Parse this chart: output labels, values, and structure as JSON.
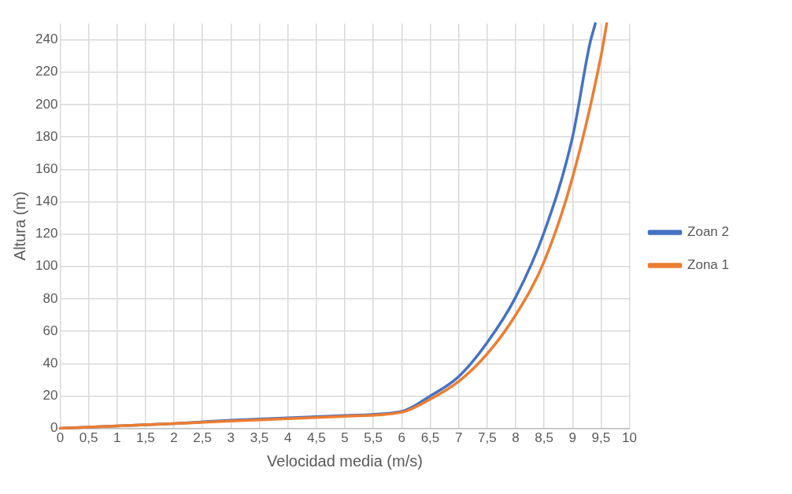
{
  "chart_data": {
    "type": "line",
    "xlabel": "Velocidad media (m/s)",
    "ylabel": "Altura (m)",
    "xlim": [
      0,
      10
    ],
    "xticks": [
      0,
      {
        "value": 0.5,
        "label": "0,5"
      },
      1,
      {
        "value": 1.5,
        "label": "1,5"
      },
      2,
      {
        "value": 2.5,
        "label": "2,5"
      },
      3,
      {
        "value": 3.5,
        "label": "3,5"
      },
      4,
      {
        "value": 4.5,
        "label": "4,5"
      },
      5,
      {
        "value": 5.5,
        "label": "5,5"
      },
      6,
      {
        "value": 6.5,
        "label": "6,5"
      },
      7,
      {
        "value": 7.5,
        "label": "7,5"
      },
      8,
      {
        "value": 8.5,
        "label": "8,5"
      },
      9,
      {
        "value": 9.5,
        "label": "9,5"
      },
      10
    ],
    "ylim": [
      0,
      250
    ],
    "yticks": [
      0,
      20,
      40,
      60,
      80,
      100,
      120,
      140,
      160,
      180,
      200,
      220,
      240
    ],
    "grid": true,
    "legend": "right",
    "marker": "none",
    "line_style": "solid",
    "series": [
      {
        "name": "Zoan 2",
        "color": "#4472c4",
        "x": [
          0,
          1,
          2,
          3,
          4,
          5,
          6,
          6.5,
          7,
          7.5,
          8,
          8.5,
          9,
          9.3,
          9.4
        ],
        "values": [
          0,
          1.5,
          3,
          5,
          6.5,
          8,
          10.5,
          20,
          32,
          53,
          81,
          121,
          180,
          237,
          250
        ]
      },
      {
        "name": "Zona 1",
        "color": "#ed7d31",
        "x": [
          0,
          1,
          2,
          3,
          4,
          5,
          6,
          6.5,
          7,
          7.5,
          8,
          8.5,
          9,
          9.5,
          9.6
        ],
        "values": [
          0,
          1.5,
          3,
          4.5,
          6,
          7.5,
          10,
          18,
          29,
          46,
          70,
          103,
          155,
          230,
          250
        ]
      }
    ]
  }
}
